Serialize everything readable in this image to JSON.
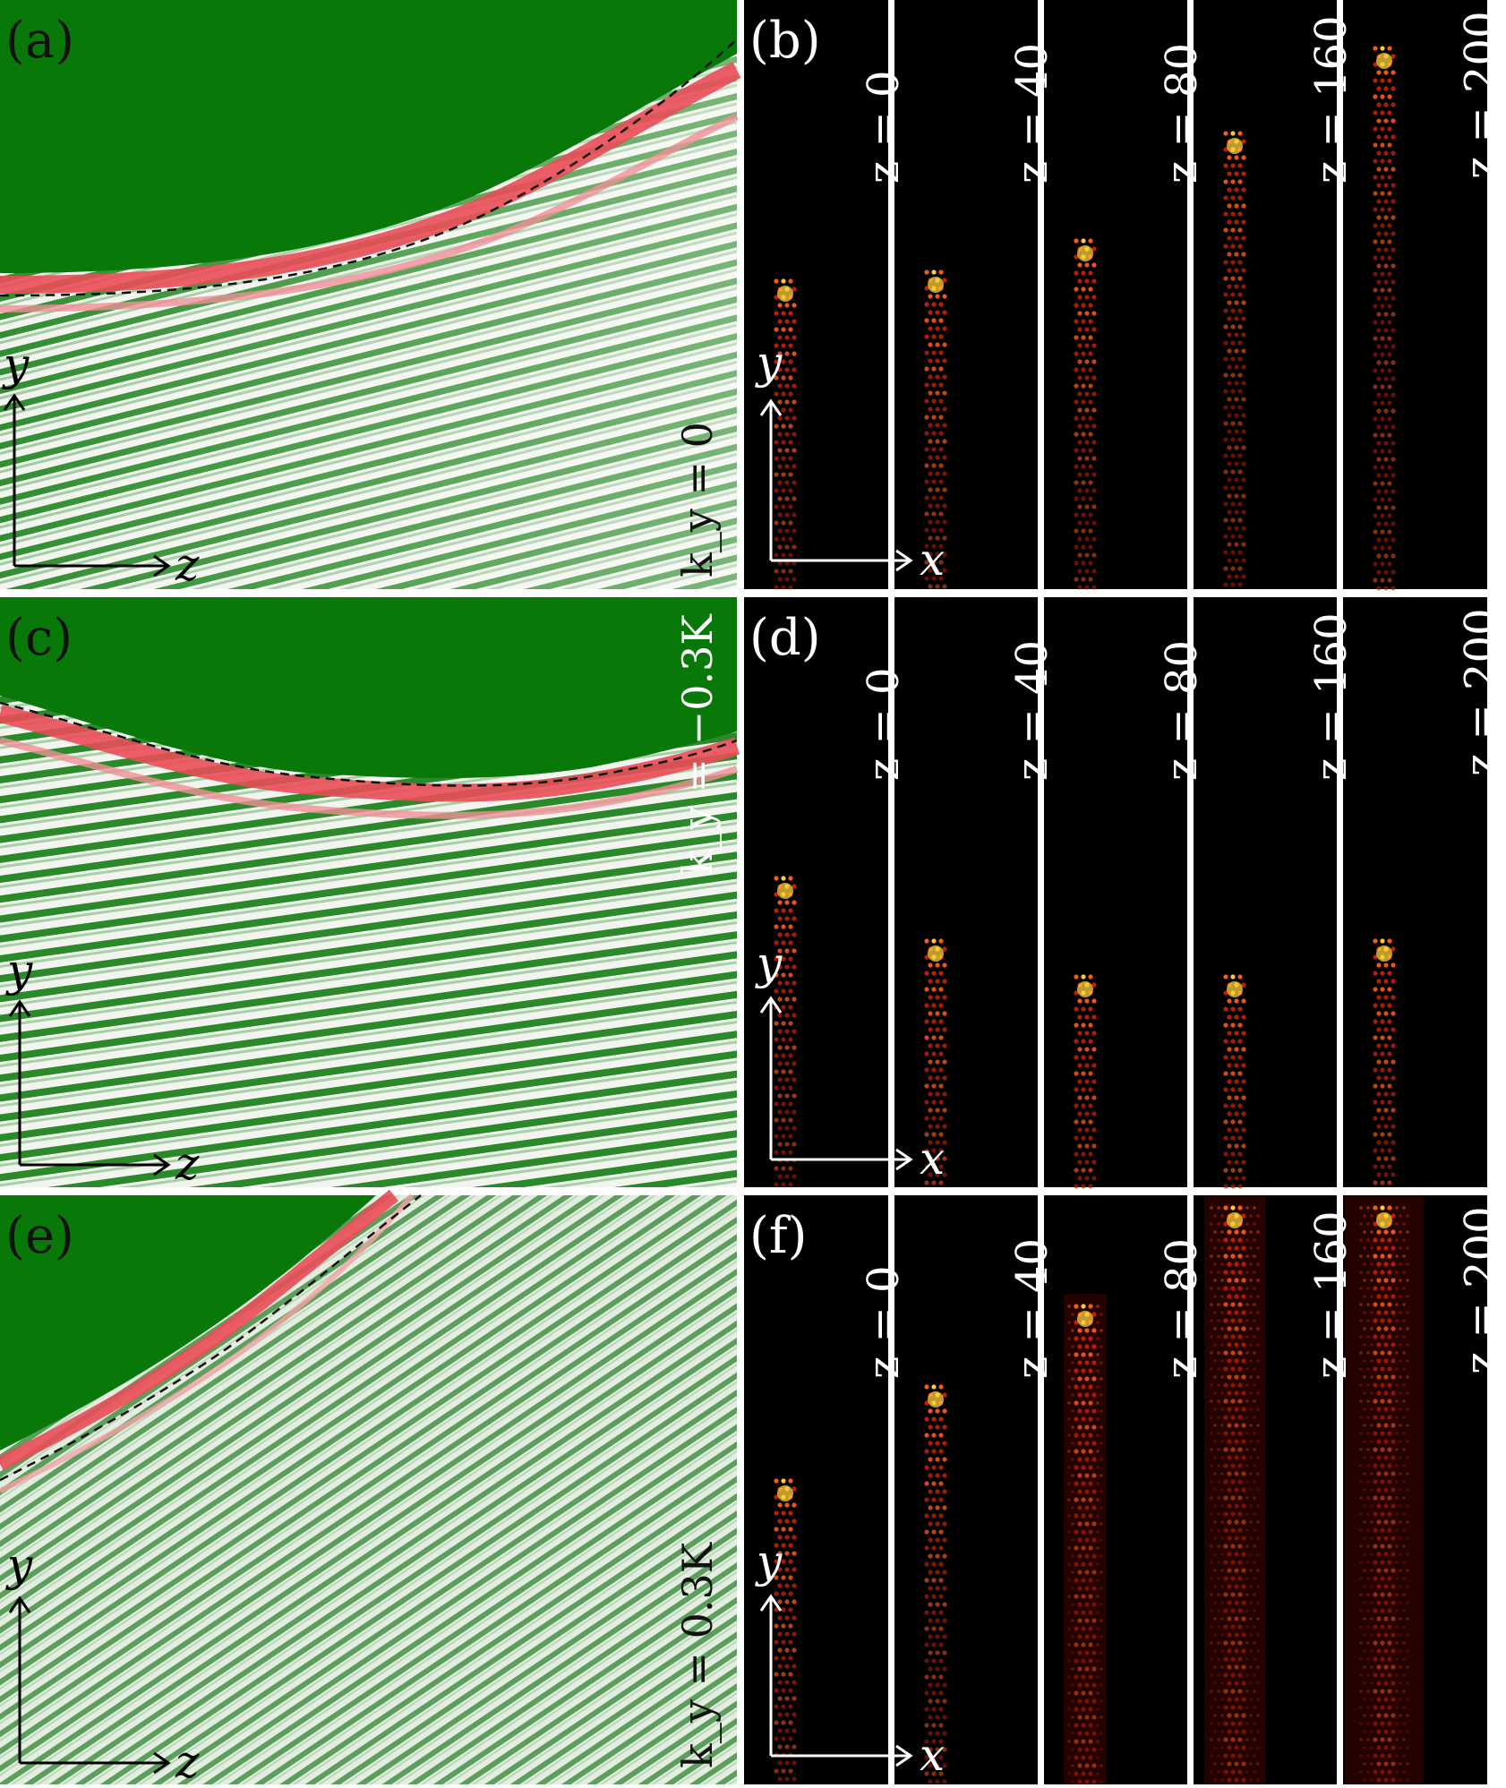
{
  "rows": [
    {
      "left": {
        "label": "(a)",
        "param": "k_y = 0",
        "param_color": "#111111",
        "axis_x": "z",
        "axis_y": "y"
      },
      "right": {
        "label": "(b)",
        "axis_x": "x",
        "axis_y": "y",
        "strips": [
          "z = 0",
          "z = 40",
          "z = 80",
          "z = 160",
          "z = 200"
        ]
      }
    },
    {
      "left": {
        "label": "(c)",
        "param": "k_y = −0.3K",
        "param_color": "#ffffff",
        "axis_x": "z",
        "axis_y": "y"
      },
      "right": {
        "label": "(d)",
        "axis_x": "x",
        "axis_y": "y",
        "strips": [
          "z = 0",
          "z = 40",
          "z = 80",
          "z = 160",
          "z = 200"
        ]
      }
    },
    {
      "left": {
        "label": "(e)",
        "param": "k_y = 0.3K",
        "param_color": "#111111",
        "axis_x": "z",
        "axis_y": "y"
      },
      "right": {
        "label": "(f)",
        "axis_x": "x",
        "axis_y": "y",
        "strips": [
          "z = 0",
          "z = 40",
          "z = 80",
          "z = 160",
          "z = 200"
        ]
      }
    }
  ],
  "colors": {
    "field_green": "#0a7a0a",
    "fringe_red": "#e8505a",
    "fringe_white": "#f2f2ee",
    "beam_hot": "#ffd23a",
    "beam_red": "#c8200a"
  }
}
